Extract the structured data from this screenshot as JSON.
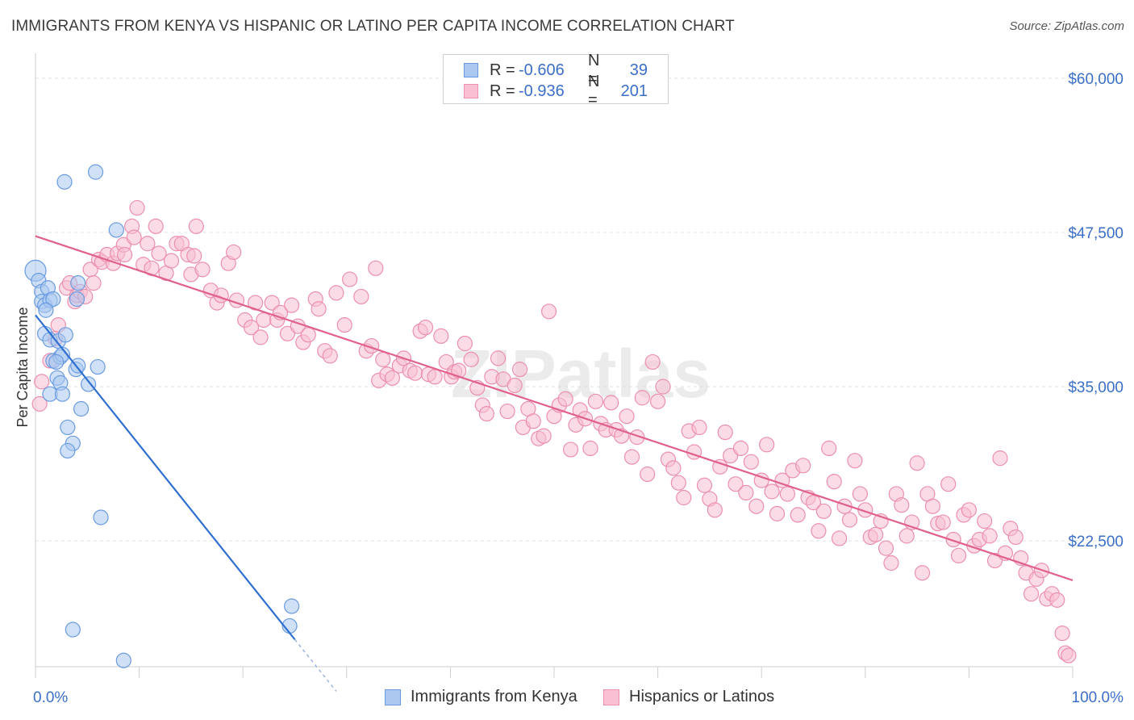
{
  "title": "IMMIGRANTS FROM KENYA VS HISPANIC OR LATINO PER CAPITA INCOME CORRELATION CHART",
  "source": "Source: ZipAtlas.com",
  "watermark": "ZIPatlas",
  "legend": {
    "r_label": "R =",
    "n_label": "N =",
    "series": [
      {
        "name": "Immigrants from Kenya",
        "r": "-0.606",
        "n": "39",
        "fill": "#aac8f0",
        "stroke": "#6a9be0"
      },
      {
        "name": "Hispanics or Latinos",
        "r": "-0.936",
        "n": "201",
        "fill": "#f8c0d2",
        "stroke": "#ec8fb0"
      }
    ]
  },
  "chart_data": {
    "type": "scatter",
    "title": "IMMIGRANTS FROM KENYA VS HISPANIC OR LATINO PER CAPITA INCOME CORRELATION CHART",
    "xlabel": "",
    "ylabel": "Per Capita Income",
    "xlim": [
      0,
      100
    ],
    "ylim": [
      11500,
      62000
    ],
    "x_tick_labels": [
      {
        "value": 0,
        "label": "0.0%"
      },
      {
        "value": 100,
        "label": "100.0%"
      }
    ],
    "y_ticks": [
      {
        "value": 60000,
        "label": "$60,000"
      },
      {
        "value": 47500,
        "label": "$47,500"
      },
      {
        "value": 35000,
        "label": "$35,000"
      },
      {
        "value": 22500,
        "label": "$22,500"
      }
    ],
    "colors": {
      "blue_line": "#2f6fd0",
      "pink_line": "#e0608e",
      "axis_label": "#3b6fc8"
    },
    "series": [
      {
        "name": "Immigrants from Kenya",
        "trend": {
          "x0": 0,
          "y0": 40800,
          "x1": 25,
          "y1": 14500,
          "dash_to_x": 29,
          "dash_to_y": 10300
        },
        "points": [
          [
            0.0,
            44400
          ],
          [
            0.3,
            43600
          ],
          [
            0.6,
            42700
          ],
          [
            0.6,
            41900
          ],
          [
            0.9,
            41600
          ],
          [
            1.2,
            43000
          ],
          [
            1.4,
            42000
          ],
          [
            1.7,
            42100
          ],
          [
            0.9,
            39300
          ],
          [
            1.4,
            38800
          ],
          [
            2.2,
            38700
          ],
          [
            2.9,
            39200
          ],
          [
            1.7,
            37100
          ],
          [
            2.4,
            37400
          ],
          [
            2.6,
            37600
          ],
          [
            4.1,
            43400
          ],
          [
            3.9,
            36400
          ],
          [
            4.1,
            36700
          ],
          [
            6.0,
            36600
          ],
          [
            2.1,
            35700
          ],
          [
            2.4,
            35300
          ],
          [
            5.1,
            35200
          ],
          [
            1.4,
            34400
          ],
          [
            2.6,
            34400
          ],
          [
            4.4,
            33200
          ],
          [
            3.1,
            31700
          ],
          [
            3.6,
            30400
          ],
          [
            3.1,
            29800
          ],
          [
            2.8,
            51600
          ],
          [
            5.8,
            52400
          ],
          [
            7.8,
            47700
          ],
          [
            6.3,
            24400
          ],
          [
            3.6,
            15300
          ],
          [
            8.5,
            12800
          ],
          [
            24.7,
            17200
          ],
          [
            24.5,
            15600
          ],
          [
            4.0,
            42100
          ],
          [
            1.0,
            41200
          ],
          [
            2.0,
            37000
          ]
        ]
      },
      {
        "name": "Hispanics or Latinos",
        "trend": {
          "x0": 0,
          "y0": 47200,
          "x1": 100,
          "y1": 19300
        },
        "points": [
          [
            0.4,
            33600
          ],
          [
            0.6,
            35400
          ],
          [
            1.4,
            37100
          ],
          [
            1.9,
            38900
          ],
          [
            2.2,
            40000
          ],
          [
            3.0,
            43000
          ],
          [
            3.3,
            43400
          ],
          [
            3.8,
            41900
          ],
          [
            4.0,
            42400
          ],
          [
            4.3,
            42700
          ],
          [
            4.8,
            42300
          ],
          [
            5.3,
            44500
          ],
          [
            5.6,
            43400
          ],
          [
            6.1,
            45300
          ],
          [
            6.4,
            45100
          ],
          [
            6.9,
            45700
          ],
          [
            7.5,
            45000
          ],
          [
            7.9,
            45800
          ],
          [
            8.5,
            46500
          ],
          [
            8.6,
            45700
          ],
          [
            9.3,
            48000
          ],
          [
            9.5,
            47100
          ],
          [
            9.8,
            49500
          ],
          [
            10.4,
            44900
          ],
          [
            10.8,
            46600
          ],
          [
            11.2,
            44600
          ],
          [
            11.6,
            48000
          ],
          [
            11.9,
            45800
          ],
          [
            12.6,
            44200
          ],
          [
            13.1,
            45200
          ],
          [
            13.6,
            46600
          ],
          [
            14.1,
            46600
          ],
          [
            14.7,
            45700
          ],
          [
            15.0,
            44100
          ],
          [
            15.3,
            45600
          ],
          [
            15.5,
            48000
          ],
          [
            16.1,
            44500
          ],
          [
            16.9,
            42800
          ],
          [
            17.5,
            41800
          ],
          [
            17.9,
            42400
          ],
          [
            18.6,
            45000
          ],
          [
            19.1,
            45900
          ],
          [
            19.4,
            42000
          ],
          [
            20.2,
            40400
          ],
          [
            20.8,
            39800
          ],
          [
            21.2,
            41800
          ],
          [
            21.7,
            39000
          ],
          [
            22.0,
            40400
          ],
          [
            22.8,
            41800
          ],
          [
            23.3,
            40400
          ],
          [
            23.6,
            41000
          ],
          [
            24.3,
            39300
          ],
          [
            24.7,
            41600
          ],
          [
            25.3,
            39900
          ],
          [
            25.8,
            38600
          ],
          [
            26.3,
            39200
          ],
          [
            27.0,
            42100
          ],
          [
            27.3,
            41300
          ],
          [
            27.9,
            37900
          ],
          [
            28.4,
            37500
          ],
          [
            29.0,
            42600
          ],
          [
            29.8,
            40000
          ],
          [
            30.3,
            43700
          ],
          [
            31.4,
            42300
          ],
          [
            31.9,
            37900
          ],
          [
            32.4,
            38300
          ],
          [
            32.8,
            44600
          ],
          [
            33.1,
            35500
          ],
          [
            33.5,
            37200
          ],
          [
            33.9,
            36000
          ],
          [
            34.4,
            35700
          ],
          [
            35.1,
            36700
          ],
          [
            35.5,
            37300
          ],
          [
            36.1,
            36300
          ],
          [
            36.6,
            36100
          ],
          [
            37.1,
            39500
          ],
          [
            37.6,
            39800
          ],
          [
            37.9,
            36000
          ],
          [
            38.5,
            35800
          ],
          [
            39.1,
            39100
          ],
          [
            39.6,
            37000
          ],
          [
            40.1,
            35800
          ],
          [
            40.4,
            36200
          ],
          [
            40.8,
            36300
          ],
          [
            41.4,
            38500
          ],
          [
            42.0,
            37200
          ],
          [
            42.6,
            34900
          ],
          [
            43.1,
            33500
          ],
          [
            43.5,
            32800
          ],
          [
            44.0,
            35800
          ],
          [
            44.6,
            37300
          ],
          [
            45.1,
            35600
          ],
          [
            45.5,
            33000
          ],
          [
            46.2,
            35100
          ],
          [
            46.7,
            36400
          ],
          [
            47.0,
            31700
          ],
          [
            47.5,
            33200
          ],
          [
            48.0,
            32200
          ],
          [
            48.5,
            30800
          ],
          [
            49.0,
            31000
          ],
          [
            49.5,
            41100
          ],
          [
            50.0,
            32600
          ],
          [
            50.5,
            33500
          ],
          [
            51.1,
            34000
          ],
          [
            51.6,
            29900
          ],
          [
            52.1,
            31900
          ],
          [
            52.5,
            33100
          ],
          [
            53.0,
            32400
          ],
          [
            53.5,
            30000
          ],
          [
            54.0,
            33800
          ],
          [
            54.5,
            32000
          ],
          [
            55.0,
            31500
          ],
          [
            55.5,
            33700
          ],
          [
            56.0,
            31500
          ],
          [
            56.5,
            31000
          ],
          [
            57.0,
            32600
          ],
          [
            57.5,
            29300
          ],
          [
            58.0,
            30900
          ],
          [
            58.5,
            34100
          ],
          [
            59.0,
            27900
          ],
          [
            59.5,
            37000
          ],
          [
            60.0,
            33800
          ],
          [
            60.5,
            35000
          ],
          [
            61.0,
            29100
          ],
          [
            61.5,
            28400
          ],
          [
            62.0,
            27200
          ],
          [
            62.5,
            26000
          ],
          [
            63.0,
            31400
          ],
          [
            63.5,
            29700
          ],
          [
            64.0,
            31700
          ],
          [
            64.5,
            27000
          ],
          [
            65.0,
            25900
          ],
          [
            65.5,
            25000
          ],
          [
            66.0,
            28500
          ],
          [
            66.5,
            31300
          ],
          [
            67.0,
            29400
          ],
          [
            67.5,
            27100
          ],
          [
            68.0,
            30000
          ],
          [
            68.5,
            26400
          ],
          [
            69.0,
            28900
          ],
          [
            69.5,
            25300
          ],
          [
            70.0,
            27400
          ],
          [
            70.5,
            30300
          ],
          [
            71.0,
            26500
          ],
          [
            71.5,
            24700
          ],
          [
            72.0,
            27400
          ],
          [
            72.5,
            26300
          ],
          [
            73.0,
            28200
          ],
          [
            73.5,
            24600
          ],
          [
            74.0,
            28600
          ],
          [
            74.5,
            26000
          ],
          [
            75.0,
            25600
          ],
          [
            75.5,
            23300
          ],
          [
            76.0,
            24900
          ],
          [
            76.5,
            30000
          ],
          [
            77.0,
            27300
          ],
          [
            77.5,
            22700
          ],
          [
            78.0,
            25300
          ],
          [
            78.5,
            24200
          ],
          [
            79.0,
            29000
          ],
          [
            79.5,
            26300
          ],
          [
            80.0,
            25000
          ],
          [
            80.5,
            22800
          ],
          [
            81.0,
            23000
          ],
          [
            81.5,
            24100
          ],
          [
            82.0,
            21900
          ],
          [
            82.5,
            20700
          ],
          [
            83.0,
            26300
          ],
          [
            83.5,
            25400
          ],
          [
            84.0,
            22900
          ],
          [
            84.5,
            24000
          ],
          [
            85.0,
            28800
          ],
          [
            85.5,
            19900
          ],
          [
            86.0,
            26300
          ],
          [
            86.5,
            25300
          ],
          [
            87.0,
            23900
          ],
          [
            87.5,
            24000
          ],
          [
            88.0,
            27100
          ],
          [
            88.5,
            22600
          ],
          [
            89.0,
            21300
          ],
          [
            89.5,
            24600
          ],
          [
            90.0,
            25000
          ],
          [
            90.5,
            22100
          ],
          [
            91.0,
            22600
          ],
          [
            91.5,
            24100
          ],
          [
            92.0,
            22900
          ],
          [
            92.5,
            20900
          ],
          [
            93.0,
            29200
          ],
          [
            93.5,
            21500
          ],
          [
            94.0,
            23500
          ],
          [
            94.5,
            22800
          ],
          [
            95.0,
            21100
          ],
          [
            95.5,
            19900
          ],
          [
            96.0,
            18200
          ],
          [
            96.5,
            19400
          ],
          [
            97.0,
            20100
          ],
          [
            97.5,
            17800
          ],
          [
            98.0,
            18200
          ],
          [
            98.5,
            17700
          ],
          [
            99.0,
            15000
          ],
          [
            99.3,
            13400
          ],
          [
            99.6,
            13200
          ]
        ]
      }
    ]
  }
}
